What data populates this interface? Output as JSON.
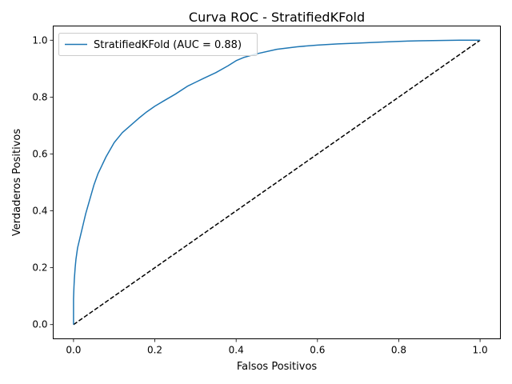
{
  "chart_data": {
    "type": "line",
    "title": "Curva ROC - StratifiedKFold",
    "xlabel": "Falsos Positivos",
    "ylabel": "Verdaderos Positivos",
    "xlim": [
      -0.05,
      1.05
    ],
    "ylim": [
      -0.05,
      1.05
    ],
    "xticks": [
      0.0,
      0.2,
      0.4,
      0.6,
      0.8,
      1.0
    ],
    "yticks": [
      0.0,
      0.2,
      0.4,
      0.6,
      0.8,
      1.0
    ],
    "tick_labels": [
      "0.0",
      "0.2",
      "0.4",
      "0.6",
      "0.8",
      "1.0"
    ],
    "grid": false,
    "legend_position": "upper-left",
    "series": [
      {
        "name": "StratifiedKFold (AUC = 0.88)",
        "color": "#1f77b4",
        "style": "solid",
        "x": [
          0.0,
          0.0,
          0.001,
          0.002,
          0.004,
          0.006,
          0.008,
          0.01,
          0.015,
          0.02,
          0.025,
          0.03,
          0.04,
          0.05,
          0.06,
          0.07,
          0.08,
          0.09,
          0.1,
          0.12,
          0.14,
          0.16,
          0.18,
          0.2,
          0.22,
          0.25,
          0.28,
          0.3,
          0.32,
          0.35,
          0.38,
          0.4,
          0.42,
          0.45,
          0.5,
          0.55,
          0.6,
          0.65,
          0.7,
          0.75,
          0.8,
          0.85,
          0.9,
          0.95,
          1.0
        ],
        "y": [
          0.0,
          0.09,
          0.13,
          0.16,
          0.2,
          0.23,
          0.25,
          0.27,
          0.3,
          0.33,
          0.36,
          0.39,
          0.44,
          0.49,
          0.53,
          0.56,
          0.59,
          0.615,
          0.64,
          0.675,
          0.7,
          0.725,
          0.748,
          0.768,
          0.785,
          0.81,
          0.838,
          0.852,
          0.866,
          0.886,
          0.91,
          0.928,
          0.94,
          0.952,
          0.968,
          0.977,
          0.983,
          0.987,
          0.99,
          0.993,
          0.996,
          0.998,
          0.999,
          1.0,
          1.0
        ]
      },
      {
        "name": "",
        "color": "#000000",
        "style": "dashed",
        "x": [
          0.0,
          1.0
        ],
        "y": [
          0.0,
          1.0
        ]
      }
    ]
  }
}
